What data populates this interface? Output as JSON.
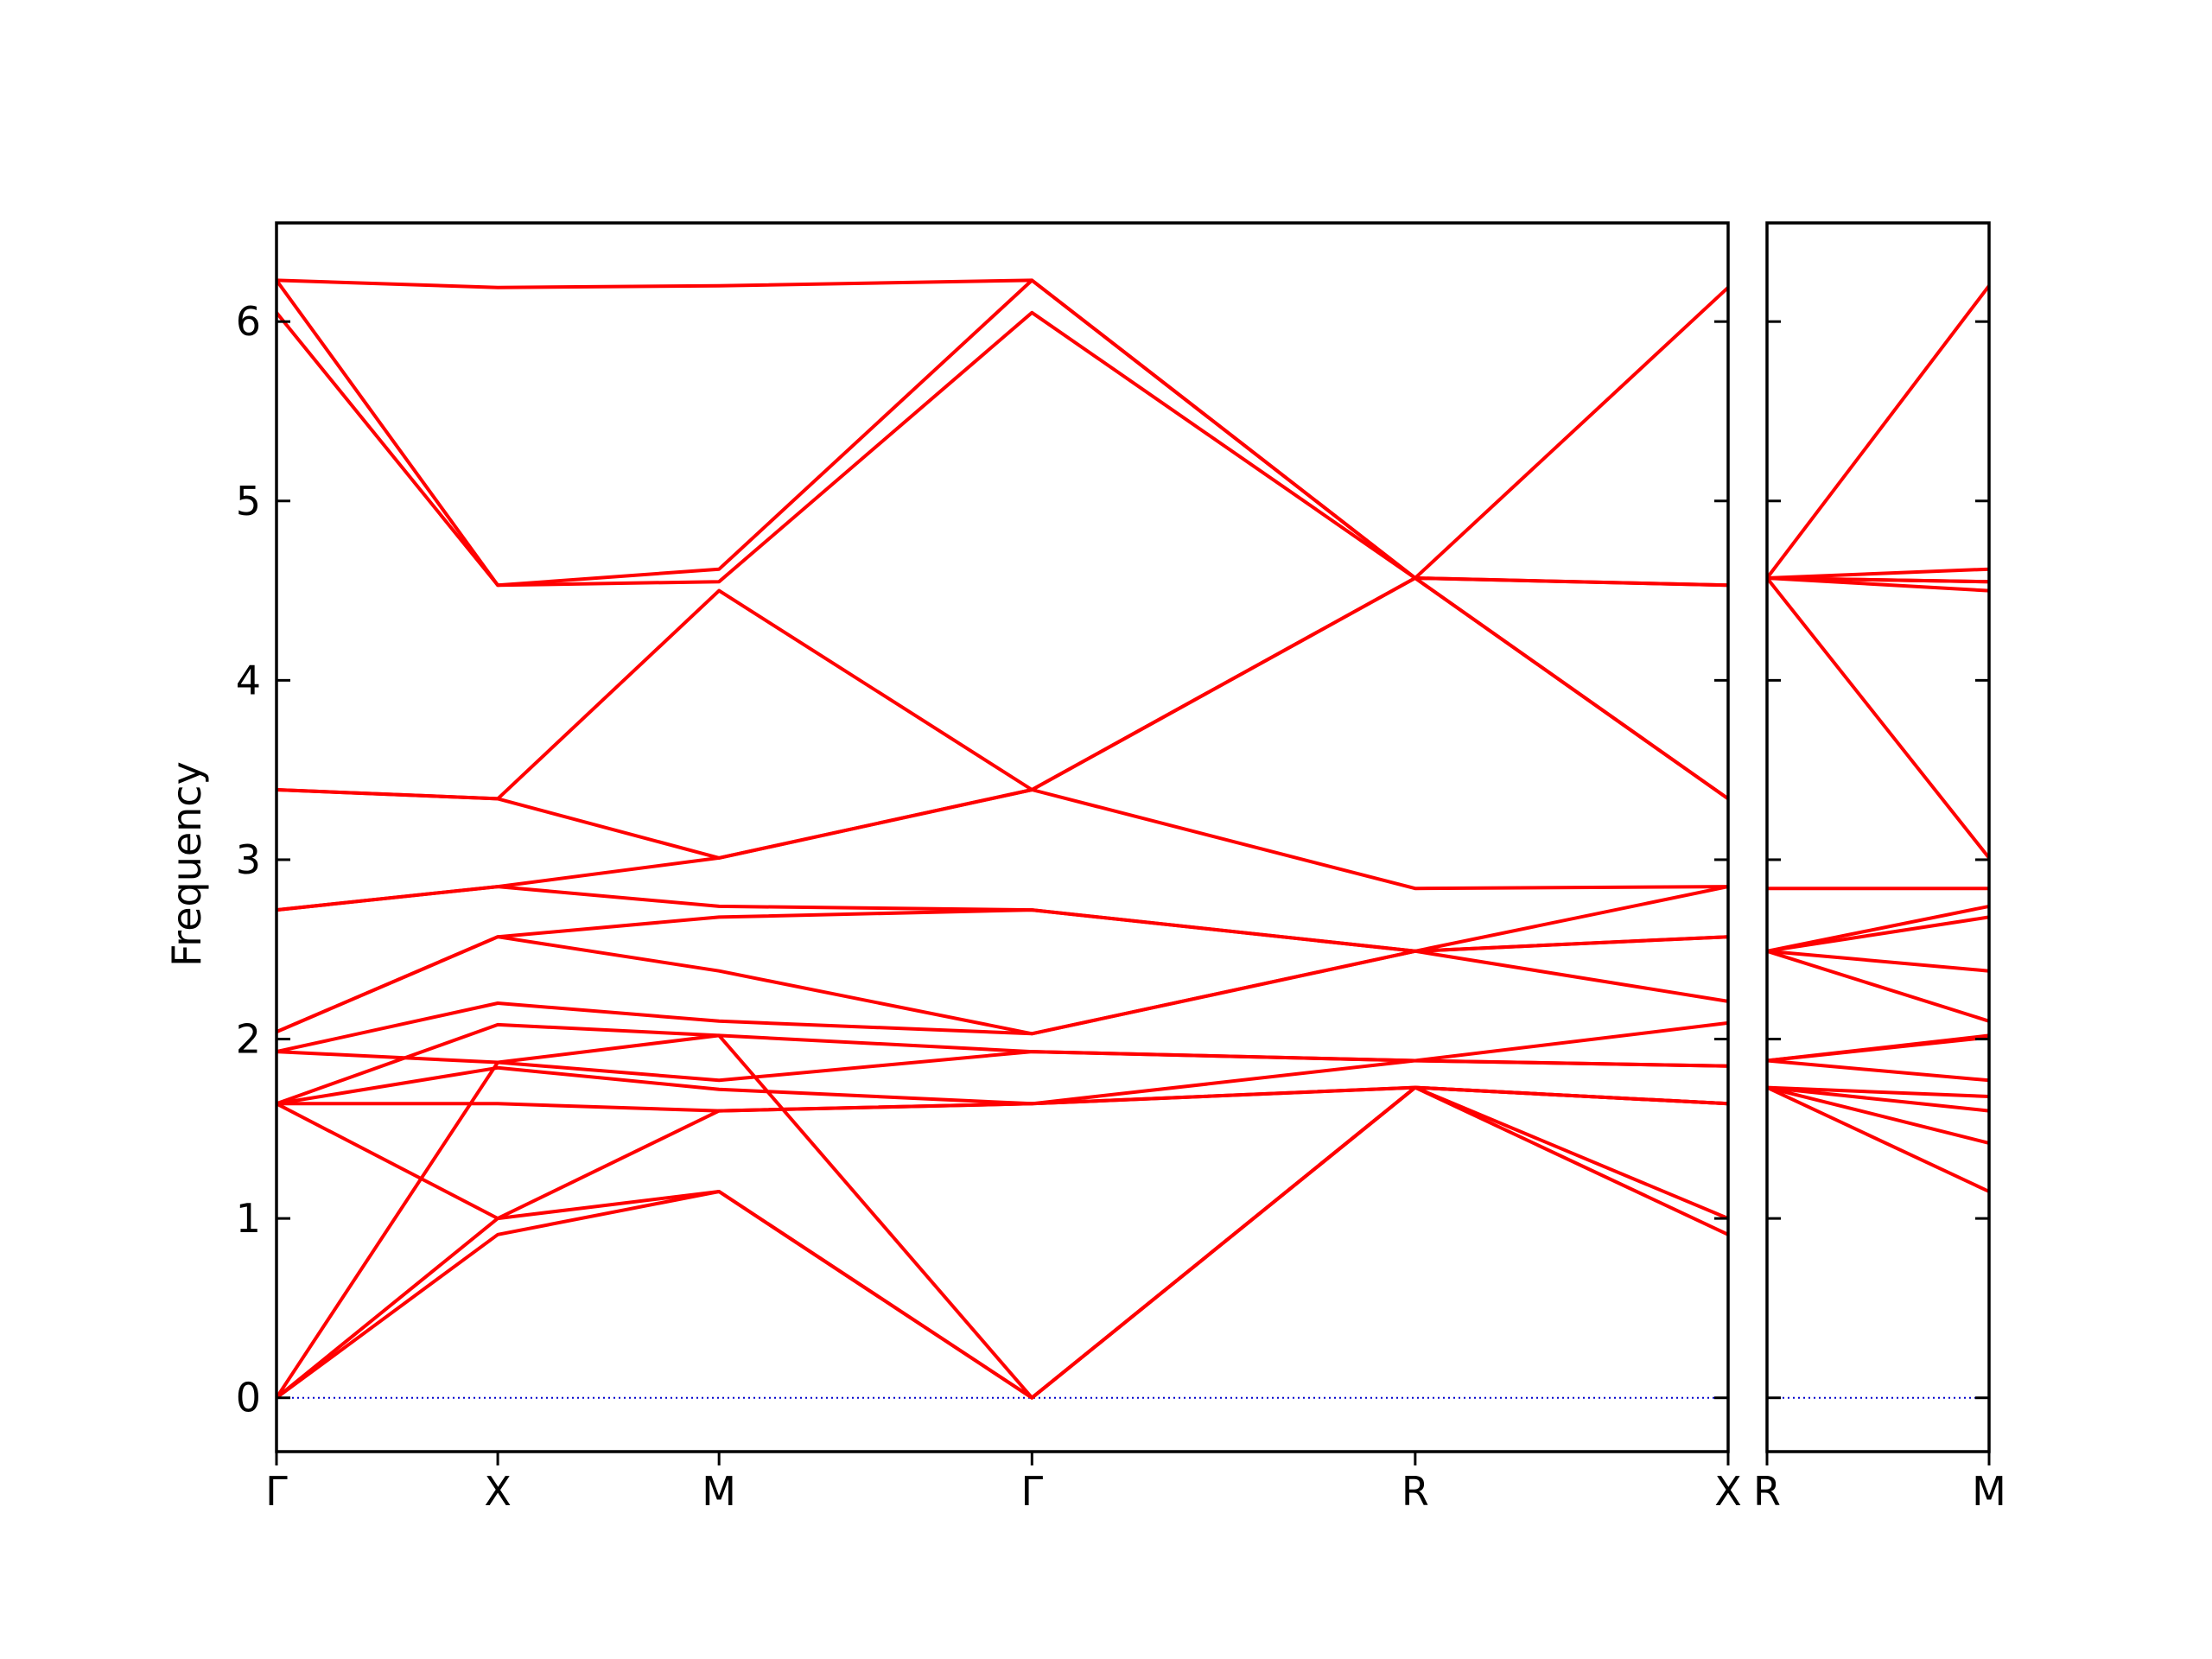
{
  "chart_data": {
    "type": "line",
    "ylabel": "Frequency",
    "ylim": [
      -0.3,
      6.55
    ],
    "y_ticks": [
      "0",
      "1",
      "2",
      "3",
      "4",
      "5",
      "6"
    ],
    "grid": false,
    "legend": "none",
    "series_color": "#ff0000",
    "zero_line_color": "#0000cc",
    "panels": [
      {
        "path_labels": [
          "Γ",
          "X",
          "M",
          "Γ",
          "R",
          "X"
        ],
        "x_ticks": [
          0,
          0.5,
          1.0,
          1.7071,
          2.5731,
          3.2802
        ],
        "bands": [
          {
            "x": [
              0,
              0.5,
              1.0,
              1.7071,
              2.5731,
              3.2802
            ],
            "y": [
              0,
              0.91,
              1.15,
              0,
              1.73,
              0.91
            ]
          },
          {
            "x": [
              0,
              0.5,
              1.0,
              1.7071,
              2.5731,
              3.2802
            ],
            "y": [
              0,
              1.0,
              1.15,
              0,
              1.73,
              1.0
            ]
          },
          {
            "x": [
              0,
              0.5,
              1.0,
              1.7071,
              2.5731,
              3.2802
            ],
            "y": [
              0,
              1.87,
              2.02,
              0,
              1.73,
              1.64
            ]
          },
          {
            "x": [
              0,
              0.5,
              1.0,
              1.7071,
              2.5731,
              3.2802
            ],
            "y": [
              1.64,
              1.0,
              1.6,
              1.64,
              1.73,
              1.64
            ]
          },
          {
            "x": [
              0,
              0.5,
              1.0,
              1.7071,
              2.5731,
              3.2802
            ],
            "y": [
              1.64,
              1.64,
              1.6,
              1.64,
              1.73,
              1.64
            ]
          },
          {
            "x": [
              0,
              0.5,
              1.0,
              1.7071,
              2.5731,
              3.2802
            ],
            "y": [
              1.64,
              1.84,
              1.72,
              1.64,
              1.88,
              1.85
            ]
          },
          {
            "x": [
              0,
              0.5,
              1.0,
              1.7071,
              2.5731,
              3.2802
            ],
            "y": [
              1.64,
              2.08,
              2.02,
              1.93,
              1.88,
              1.85
            ]
          },
          {
            "x": [
              0,
              0.5,
              1.0,
              1.7071,
              2.5731,
              3.2802
            ],
            "y": [
              1.93,
              1.87,
              1.77,
              1.93,
              1.88,
              2.09
            ]
          },
          {
            "x": [
              0,
              0.5,
              1.0,
              1.7071,
              2.5731,
              3.2802
            ],
            "y": [
              1.93,
              2.2,
              2.1,
              2.03,
              2.49,
              2.21
            ]
          },
          {
            "x": [
              0,
              0.5,
              1.0,
              1.7071,
              2.5731,
              3.2802
            ],
            "y": [
              2.04,
              2.57,
              2.38,
              2.03,
              2.49,
              2.57
            ]
          },
          {
            "x": [
              0,
              0.5,
              1.0,
              1.7071,
              2.5731,
              3.2802
            ],
            "y": [
              2.04,
              2.57,
              2.68,
              2.72,
              2.49,
              2.57
            ]
          },
          {
            "x": [
              0,
              0.5,
              1.0,
              1.7071,
              2.5731,
              3.2802
            ],
            "y": [
              2.72,
              2.85,
              2.74,
              2.72,
              2.49,
              2.85
            ]
          },
          {
            "x": [
              0,
              0.5,
              1.0,
              1.7071,
              2.5731,
              3.2802
            ],
            "y": [
              2.72,
              2.85,
              3.01,
              3.39,
              2.84,
              2.85
            ]
          },
          {
            "x": [
              0,
              0.5,
              1.0,
              1.7071,
              2.5731,
              3.2802
            ],
            "y": [
              3.39,
              3.34,
              3.01,
              3.39,
              4.57,
              3.34
            ]
          },
          {
            "x": [
              0,
              0.5,
              1.0,
              1.7071,
              2.5731,
              3.2802
            ],
            "y": [
              3.39,
              3.34,
              4.5,
              3.39,
              4.57,
              3.34
            ]
          },
          {
            "x": [
              0,
              0.5,
              1.0,
              1.7071,
              2.5731,
              3.2802
            ],
            "y": [
              6.05,
              4.53,
              4.55,
              6.05,
              4.57,
              4.53
            ]
          },
          {
            "x": [
              0,
              0.5,
              1.0,
              1.7071,
              2.5731,
              3.2802
            ],
            "y": [
              6.23,
              4.53,
              4.62,
              6.23,
              4.57,
              4.53
            ]
          },
          {
            "x": [
              0,
              0.5,
              1.0,
              1.7071,
              2.5731,
              3.2802
            ],
            "y": [
              6.23,
              6.19,
              6.2,
              6.23,
              4.57,
              6.19
            ]
          }
        ]
      },
      {
        "path_labels": [
          "R",
          "M"
        ],
        "x_ticks": [
          0,
          0.7071
        ],
        "bands": [
          {
            "x": [
              0,
              0.7071
            ],
            "y": [
              1.73,
              1.15
            ]
          },
          {
            "x": [
              0,
              0.7071
            ],
            "y": [
              1.73,
              1.42
            ]
          },
          {
            "x": [
              0,
              0.7071
            ],
            "y": [
              1.73,
              1.6
            ]
          },
          {
            "x": [
              0,
              0.7071
            ],
            "y": [
              1.73,
              1.68
            ]
          },
          {
            "x": [
              0,
              0.7071
            ],
            "y": [
              1.88,
              1.77
            ]
          },
          {
            "x": [
              0,
              0.7071
            ],
            "y": [
              1.88,
              2.01
            ]
          },
          {
            "x": [
              0,
              0.7071
            ],
            "y": [
              1.88,
              2.02
            ]
          },
          {
            "x": [
              0,
              0.7071
            ],
            "y": [
              2.49,
              2.1
            ]
          },
          {
            "x": [
              0,
              0.7071
            ],
            "y": [
              2.49,
              2.38
            ]
          },
          {
            "x": [
              0,
              0.7071
            ],
            "y": [
              2.49,
              2.68
            ]
          },
          {
            "x": [
              0,
              0.7071
            ],
            "y": [
              2.49,
              2.74
            ]
          },
          {
            "x": [
              0,
              0.7071
            ],
            "y": [
              2.84,
              2.84
            ]
          },
          {
            "x": [
              0,
              0.7071
            ],
            "y": [
              4.57,
              3.01
            ]
          },
          {
            "x": [
              0,
              0.7071
            ],
            "y": [
              4.57,
              4.5
            ]
          },
          {
            "x": [
              0,
              0.7071
            ],
            "y": [
              4.57,
              4.55
            ]
          },
          {
            "x": [
              0,
              0.7071
            ],
            "y": [
              4.57,
              4.55
            ]
          },
          {
            "x": [
              0,
              0.7071
            ],
            "y": [
              4.57,
              4.62
            ]
          },
          {
            "x": [
              0,
              0.7071
            ],
            "y": [
              4.57,
              6.2
            ]
          }
        ]
      }
    ]
  }
}
